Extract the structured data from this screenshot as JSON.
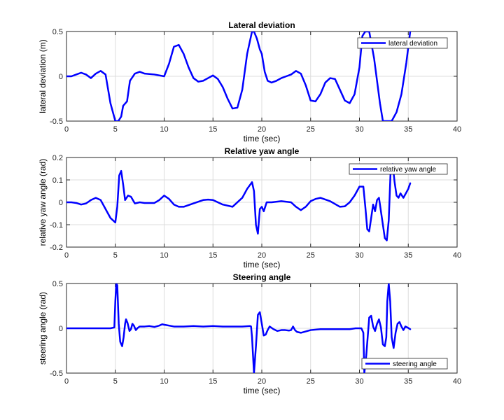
{
  "chart_data": [
    {
      "type": "line",
      "title": "Lateral deviation",
      "xlabel": "time (sec)",
      "ylabel": "lateral deviation (m)",
      "xlim": [
        0,
        40
      ],
      "ylim": [
        -0.5,
        0.5
      ],
      "xticks": [
        0,
        5,
        10,
        15,
        20,
        25,
        30,
        35,
        40
      ],
      "yticks": [
        -0.5,
        0,
        0.5
      ],
      "grid": true,
      "legend_position": "top-right",
      "color": "#0000ff",
      "series": [
        {
          "name": "lateral deviation",
          "x": [
            0,
            0.5,
            1,
            1.5,
            2,
            2.5,
            3,
            3.5,
            4,
            4.5,
            5,
            5.3,
            5.6,
            5.8,
            6.2,
            6.5,
            7,
            7.5,
            8,
            9,
            10,
            10.5,
            11,
            11.5,
            12,
            12.5,
            13,
            13.5,
            14,
            14.5,
            15,
            15.5,
            16,
            16.5,
            17,
            17.5,
            18,
            18.5,
            19,
            19.2,
            19.5,
            19.8,
            20,
            20.3,
            20.6,
            21,
            21.5,
            22,
            22.5,
            23,
            23.5,
            24,
            24.5,
            25,
            25.5,
            26,
            26.5,
            27,
            27.5,
            28,
            28.5,
            29,
            29.5,
            30,
            30.3,
            30.6,
            31,
            31.5,
            31.8,
            32.1,
            32.4,
            32.8,
            33.3,
            33.8,
            34.3,
            34.8,
            35.2
          ],
          "values": [
            0,
            0,
            0.02,
            0.04,
            0.02,
            -0.02,
            0.03,
            0.06,
            0.02,
            -0.3,
            -0.5,
            -0.5,
            -0.45,
            -0.33,
            -0.28,
            -0.05,
            0.03,
            0.05,
            0.03,
            0.02,
            0,
            0.14,
            0.33,
            0.35,
            0.25,
            0.1,
            -0.02,
            -0.06,
            -0.05,
            -0.02,
            0.01,
            -0.03,
            -0.12,
            -0.25,
            -0.36,
            -0.35,
            -0.15,
            0.25,
            0.5,
            0.5,
            0.42,
            0.3,
            0.25,
            0.05,
            -0.05,
            -0.07,
            -0.05,
            -0.02,
            0,
            0.02,
            0.06,
            0.03,
            -0.1,
            -0.27,
            -0.28,
            -0.2,
            -0.07,
            -0.02,
            -0.03,
            -0.15,
            -0.27,
            -0.3,
            -0.2,
            0.1,
            0.45,
            0.5,
            0.5,
            0.2,
            -0.05,
            -0.3,
            -0.5,
            -0.5,
            -0.5,
            -0.4,
            -0.2,
            0.15,
            0.5
          ]
        }
      ]
    },
    {
      "type": "line",
      "title": "Relative yaw angle",
      "xlabel": "time (sec)",
      "ylabel": "relative yaw angle (rad)",
      "xlim": [
        0,
        40
      ],
      "ylim": [
        -0.2,
        0.2
      ],
      "xticks": [
        0,
        5,
        10,
        15,
        20,
        25,
        30,
        35,
        40
      ],
      "yticks": [
        -0.2,
        -0.1,
        0,
        0.1,
        0.2
      ],
      "grid": true,
      "legend_position": "top-right",
      "color": "#0000ff",
      "series": [
        {
          "name": "relative yaw angle",
          "x": [
            0,
            0.5,
            1,
            1.5,
            2,
            2.5,
            3,
            3.5,
            4,
            4.5,
            5,
            5.2,
            5.4,
            5.6,
            5.8,
            6,
            6.3,
            6.6,
            7,
            7.5,
            8,
            9,
            9.5,
            10,
            10.5,
            11,
            11.5,
            12,
            13,
            14,
            14.5,
            15,
            15.5,
            16,
            17,
            18,
            18.5,
            19,
            19.2,
            19.4,
            19.6,
            19.8,
            20,
            20.2,
            20.5,
            21,
            22,
            23,
            23.5,
            24,
            24.5,
            25,
            25.5,
            26,
            27,
            28,
            28.5,
            29,
            29.5,
            30,
            30.4,
            30.6,
            30.8,
            31,
            31.2,
            31.4,
            31.6,
            31.8,
            32,
            32.2,
            32.4,
            32.6,
            32.8,
            33,
            33.2,
            33.4,
            33.6,
            33.8,
            34,
            34.2,
            34.5,
            35,
            35.2
          ],
          "values": [
            0,
            0,
            -0.003,
            -0.01,
            -0.005,
            0.01,
            0.02,
            0.01,
            -0.03,
            -0.07,
            -0.09,
            -0.02,
            0.12,
            0.14,
            0.08,
            0.01,
            0.03,
            0.025,
            -0.005,
            0,
            -0.003,
            -0.003,
            0.01,
            0.03,
            0.015,
            -0.01,
            -0.02,
            -0.02,
            -0.005,
            0.01,
            0.012,
            0.01,
            0,
            -0.01,
            -0.02,
            0.02,
            0.06,
            0.09,
            0.05,
            -0.1,
            -0.14,
            -0.03,
            -0.02,
            -0.04,
            0,
            0,
            0.005,
            0,
            -0.02,
            -0.035,
            -0.02,
            0.005,
            0.015,
            0.02,
            0.005,
            -0.02,
            -0.018,
            0,
            0.03,
            0.07,
            0.07,
            -0.02,
            -0.12,
            -0.13,
            -0.07,
            -0.01,
            -0.04,
            0.01,
            0.02,
            -0.04,
            -0.1,
            -0.16,
            -0.17,
            -0.08,
            0.15,
            0.17,
            0.09,
            0.03,
            0.02,
            0.04,
            0.02,
            0.06,
            0.085
          ]
        }
      ]
    },
    {
      "type": "line",
      "title": "Steering angle",
      "xlabel": "time (sec)",
      "ylabel": "steering angle (rad)",
      "xlim": [
        0,
        40
      ],
      "ylim": [
        -0.5,
        0.5
      ],
      "xticks": [
        0,
        5,
        10,
        15,
        20,
        25,
        30,
        35,
        40
      ],
      "yticks": [
        -0.5,
        0,
        0.5
      ],
      "grid": true,
      "legend_position": "bottom-right",
      "color": "#0000ff",
      "series": [
        {
          "name": "steering angle",
          "x": [
            0,
            1,
            2,
            3,
            4,
            4.5,
            4.9,
            5,
            5.1,
            5.2,
            5.35,
            5.5,
            5.7,
            5.85,
            6,
            6.1,
            6.25,
            6.45,
            6.6,
            6.75,
            6.9,
            7.1,
            7.3,
            7.5,
            8,
            8.5,
            9,
            9.5,
            9.8,
            10,
            11,
            12,
            13,
            14,
            15,
            16,
            17,
            18,
            18.8,
            18.9,
            19,
            19.2,
            19.4,
            19.6,
            19.8,
            20,
            20.2,
            20.4,
            20.6,
            20.8,
            21.2,
            21.6,
            22,
            22.4,
            22.8,
            23,
            23.2,
            23.4,
            23.6,
            24,
            25,
            26,
            27,
            28,
            29,
            29.6,
            30,
            30.2,
            30.4,
            30.5,
            30.7,
            31,
            31.2,
            31.4,
            31.6,
            31.8,
            32,
            32.2,
            32.4,
            32.6,
            32.75,
            32.85,
            33,
            33.15,
            33.3,
            33.5,
            33.7,
            33.9,
            34.1,
            34.3,
            34.5,
            34.7,
            34.9,
            35.2
          ],
          "values": [
            0,
            0,
            0,
            0,
            0,
            0,
            0.01,
            0.3,
            0.5,
            0.48,
            0.05,
            -0.15,
            -0.2,
            -0.1,
            0.05,
            0.1,
            0.06,
            -0.03,
            -0.01,
            0.05,
            0.03,
            -0.02,
            0.005,
            0.02,
            0.02,
            0.025,
            0.015,
            0.03,
            0.045,
            0.04,
            0.02,
            0.02,
            0.025,
            0.02,
            0.025,
            0.02,
            0.02,
            0.02,
            0.025,
            0.02,
            -0.1,
            -0.5,
            -0.2,
            0.15,
            0.18,
            0.05,
            -0.08,
            -0.07,
            -0.02,
            0.02,
            -0.01,
            -0.03,
            -0.02,
            -0.02,
            -0.025,
            -0.02,
            0.02,
            -0.02,
            -0.04,
            -0.05,
            -0.02,
            -0.01,
            -0.01,
            -0.01,
            -0.01,
            0,
            0,
            0,
            -0.05,
            -0.5,
            -0.3,
            0.12,
            0.14,
            0.02,
            -0.03,
            0.05,
            0.1,
            0.01,
            -0.18,
            -0.2,
            -0.1,
            0.3,
            0.5,
            0.3,
            -0.1,
            -0.22,
            -0.05,
            0.05,
            0.07,
            0.02,
            -0.02,
            0.02,
            0.01,
            -0.01
          ]
        }
      ]
    }
  ]
}
